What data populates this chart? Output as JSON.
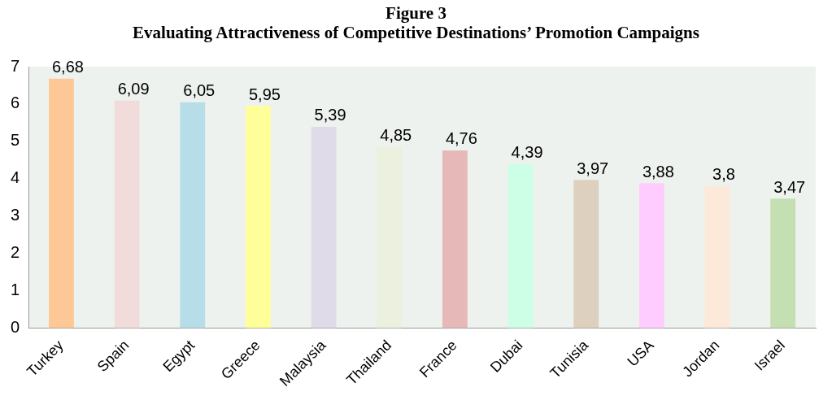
{
  "chart_data": {
    "type": "bar",
    "title": "Figure 3",
    "subtitle": "Evaluating Attractiveness of Competitive Destinations’ Promotion Campaigns",
    "categories": [
      "Turkey",
      "Spain",
      "Egypt",
      "Greece",
      "Malaysia",
      "Thailand",
      "France",
      "Dubai",
      "Tunisia",
      "USA",
      "Jordan",
      "Israel"
    ],
    "values": [
      6.68,
      6.09,
      6.05,
      5.95,
      5.39,
      4.85,
      4.76,
      4.39,
      3.97,
      3.88,
      3.8,
      3.47
    ],
    "value_labels": [
      "6,68",
      "6,09",
      "6,05",
      "5,95",
      "5,39",
      "4,85",
      "4,76",
      "4,39",
      "3,97",
      "3,88",
      "3,8",
      "3,47"
    ],
    "colors": [
      "#fdc896",
      "#f2dcdb",
      "#b7dee8",
      "#ffff99",
      "#e0dbe9",
      "#ebf1de",
      "#e6b9b8",
      "#ccffe6",
      "#ddd0bf",
      "#ffccff",
      "#fde9d9",
      "#c4e0b2"
    ],
    "ylim": [
      0,
      7
    ],
    "yticks": [
      0,
      1,
      2,
      3,
      4,
      5,
      6,
      7
    ],
    "grid": false,
    "legend": false
  }
}
